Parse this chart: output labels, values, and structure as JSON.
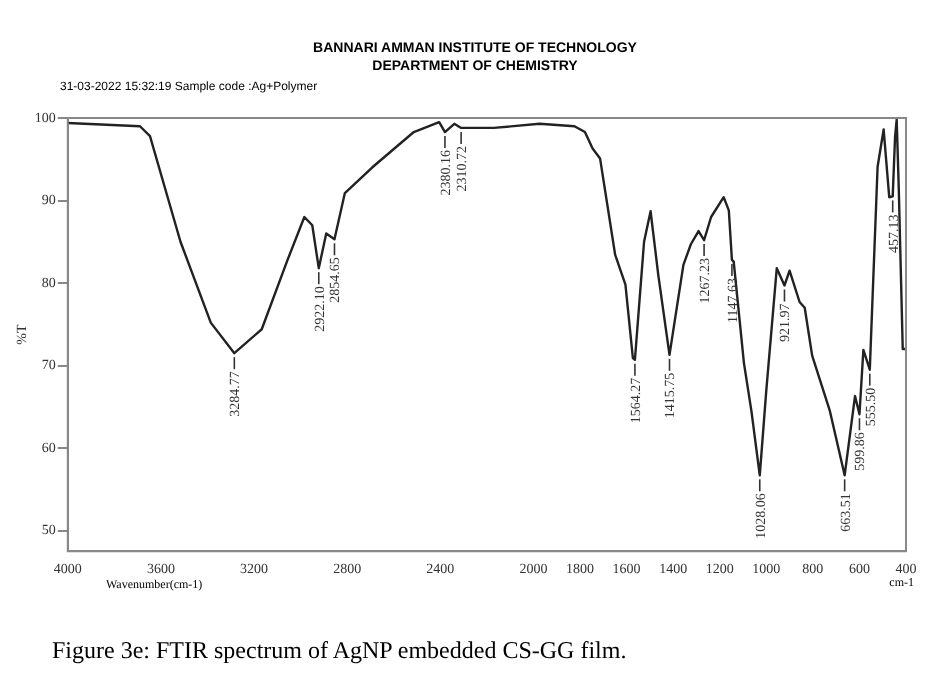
{
  "chart_data": {
    "type": "line",
    "title": "BANNARI AMMAN INSTITUTE OF TECHNOLOGY",
    "subtitle": "DEPARTMENT OF CHEMISTRY",
    "xlabel": "Wavenumber(cm-1)",
    "ylabel": "%T",
    "annotations": [
      "31-03-2022 15:32:19 Sample code :Ag+Polymer",
      "cm-1",
      "Figure 3e: FTIR spectrum of AgNP embedded CS-GG film.",
      {
        "text": "3284.77",
        "x": 3284.77,
        "y": 71.5
      },
      {
        "text": "2922.10",
        "x": 2922.1,
        "y": 81.8
      },
      {
        "text": "2854.65",
        "x": 2854.65,
        "y": 85.3
      },
      {
        "text": "2380.16",
        "x": 2380.16,
        "y": 98.3
      },
      {
        "text": "2310.72",
        "x": 2310.72,
        "y": 98.8
      },
      {
        "text": "1564.27",
        "x": 1564.27,
        "y": 70.7
      },
      {
        "text": "1415.75",
        "x": 1415.75,
        "y": 71.3
      },
      {
        "text": "1267.23",
        "x": 1267.23,
        "y": 85.2
      },
      {
        "text": "1147.63",
        "x": 1147.63,
        "y": 82.8
      },
      {
        "text": "1028.06",
        "x": 1028.06,
        "y": 56.7
      },
      {
        "text": "921.97",
        "x": 921.97,
        "y": 79.7
      },
      {
        "text": "663.51",
        "x": 663.51,
        "y": 56.7
      },
      {
        "text": "599.86",
        "x": 599.86,
        "y": 64.1
      },
      {
        "text": "555.50",
        "x": 555.5,
        "y": 69.5
      },
      {
        "text": "457.13",
        "x": 457.13,
        "y": 90.5
      }
    ],
    "x": [
      4000,
      3690,
      3647,
      3516,
      3386,
      3284.77,
      3167,
      3059,
      2984,
      2950,
      2922.1,
      2890,
      2854.65,
      2810,
      2693,
      2514,
      2405,
      2380.16,
      2340,
      2310.72,
      2170,
      1974,
      1824,
      1779,
      1746,
      1714,
      1649,
      1605,
      1573,
      1564.27,
      1525,
      1497,
      1464,
      1415.75,
      1356,
      1324,
      1291,
      1267.23,
      1237,
      1183,
      1161,
      1147.63,
      1140,
      1096,
      1064,
      1028.06,
      1000,
      955,
      921.97,
      900,
      857,
      835,
      803,
      727,
      663.51,
      619,
      599.86,
      583,
      555.5,
      522,
      496,
      472,
      457.13,
      447,
      440,
      431,
      414,
      400
    ],
    "series": [
      {
        "color": "#222222",
        "values": [
          99.4,
          99.0,
          97.8,
          85,
          75.2,
          71.5,
          74.4,
          82.6,
          88,
          87,
          81.8,
          86,
          85.3,
          90.9,
          94,
          98.3,
          99.5,
          98.3,
          99.3,
          98.8,
          98.8,
          99.3,
          99.0,
          98.3,
          96.3,
          95.1,
          83.4,
          79.8,
          70.9,
          70.7,
          85,
          88.7,
          81,
          71.3,
          82.2,
          84.7,
          86.3,
          85.2,
          88,
          90.4,
          88.8,
          82.8,
          82.6,
          70.3,
          64.5,
          56.7,
          67,
          81.8,
          79.7,
          81.5,
          77.7,
          77,
          71.2,
          64.5,
          56.7,
          66.3,
          64.1,
          71.9,
          69.5,
          94.1,
          98.6,
          90.4,
          90.5,
          97.7,
          99.8,
          91.4,
          72,
          72
        ]
      }
    ],
    "xlim": [
      4000,
      400
    ],
    "ylim": [
      47.5,
      100
    ],
    "xticks": [
      4000,
      3600,
      3200,
      2800,
      2400,
      2000,
      1800,
      1600,
      1400,
      1200,
      1000,
      800,
      600,
      400
    ],
    "yticks": [
      50,
      60,
      70,
      80,
      90,
      100
    ],
    "grid": false,
    "legend": false,
    "marker": "none",
    "line_style": "solid"
  }
}
